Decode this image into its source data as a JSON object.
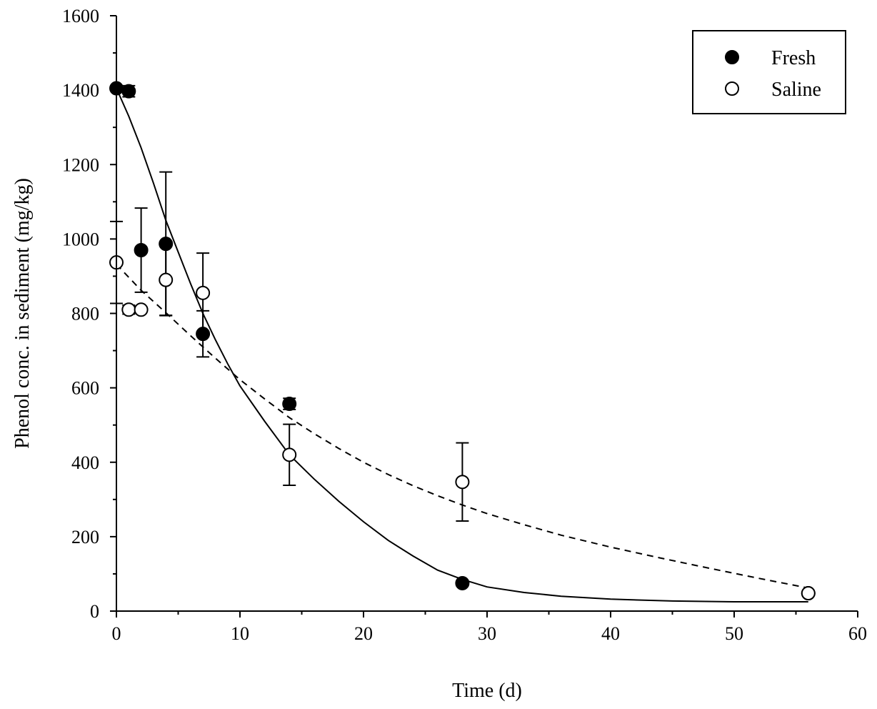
{
  "chart_data": {
    "type": "scatter",
    "xlabel": "Time (d)",
    "ylabel": "Phenol conc. in sediment (mg/kg)",
    "xlim": [
      0,
      60
    ],
    "ylim": [
      0,
      1600
    ],
    "xticks": [
      0,
      10,
      20,
      30,
      40,
      50,
      60
    ],
    "yticks": [
      0,
      200,
      400,
      600,
      800,
      1000,
      1200,
      1400,
      1600
    ],
    "xtick_labels": [
      "0",
      "10",
      "20",
      "30",
      "40",
      "50",
      "60"
    ],
    "ytick_labels": [
      "0",
      "200",
      "400",
      "600",
      "800",
      "1000",
      "1200",
      "1400",
      "1600"
    ],
    "grid": false,
    "legend_position": "top-right",
    "legend": [
      "Fresh",
      "Saline"
    ],
    "series": [
      {
        "name": "Fresh",
        "marker": "filled-circle",
        "color": "#000000",
        "points": [
          {
            "x": 0,
            "y": 1405,
            "err": 5
          },
          {
            "x": 1,
            "y": 1397,
            "err": 15
          },
          {
            "x": 2,
            "y": 970,
            "err": 113
          },
          {
            "x": 4,
            "y": 987,
            "err": 193
          },
          {
            "x": 7,
            "y": 745,
            "err": 62
          },
          {
            "x": 14,
            "y": 557,
            "err": 15
          },
          {
            "x": 28,
            "y": 75,
            "err": 5
          },
          {
            "x": 56,
            "y": 48,
            "err": 5
          }
        ],
        "fit_line": "solid",
        "fit": [
          [
            0,
            1405
          ],
          [
            1,
            1330
          ],
          [
            2,
            1245
          ],
          [
            3,
            1150
          ],
          [
            4,
            1050
          ],
          [
            5,
            965
          ],
          [
            6,
            880
          ],
          [
            7,
            800
          ],
          [
            8,
            730
          ],
          [
            9,
            665
          ],
          [
            10,
            605
          ],
          [
            12,
            510
          ],
          [
            14,
            420
          ],
          [
            16,
            355
          ],
          [
            18,
            295
          ],
          [
            20,
            240
          ],
          [
            22,
            190
          ],
          [
            24,
            148
          ],
          [
            26,
            110
          ],
          [
            28,
            85
          ],
          [
            30,
            65
          ],
          [
            33,
            50
          ],
          [
            36,
            40
          ],
          [
            40,
            32
          ],
          [
            45,
            27
          ],
          [
            50,
            25
          ],
          [
            56,
            25
          ]
        ]
      },
      {
        "name": "Saline",
        "marker": "open-circle",
        "color": "#000000",
        "points": [
          {
            "x": 0,
            "y": 937,
            "err": 110
          },
          {
            "x": 1,
            "y": 810,
            "err": 12
          },
          {
            "x": 2,
            "y": 810,
            "err": 5
          },
          {
            "x": 4,
            "y": 890,
            "err": 95
          },
          {
            "x": 7,
            "y": 855,
            "err": 107
          },
          {
            "x": 14,
            "y": 420,
            "err": 82
          },
          {
            "x": 28,
            "y": 347,
            "err": 105
          },
          {
            "x": 56,
            "y": 48,
            "err": 5
          }
        ],
        "fit_line": "dashed",
        "fit": [
          [
            0,
            932
          ],
          [
            2,
            862
          ],
          [
            4,
            802
          ],
          [
            6,
            740
          ],
          [
            8,
            680
          ],
          [
            10,
            622
          ],
          [
            12,
            570
          ],
          [
            14,
            520
          ],
          [
            16,
            477
          ],
          [
            18,
            437
          ],
          [
            20,
            400
          ],
          [
            22,
            367
          ],
          [
            24,
            337
          ],
          [
            26,
            310
          ],
          [
            28,
            285
          ],
          [
            30,
            262
          ],
          [
            33,
            232
          ],
          [
            36,
            204
          ],
          [
            40,
            172
          ],
          [
            44,
            143
          ],
          [
            48,
            115
          ],
          [
            52,
            88
          ],
          [
            56,
            62
          ]
        ]
      }
    ]
  }
}
